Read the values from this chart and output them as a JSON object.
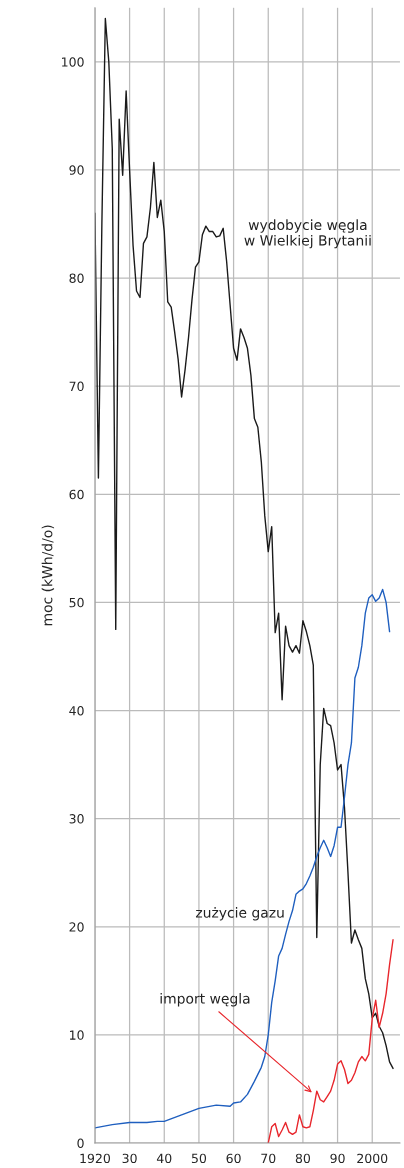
{
  "chart_data": {
    "type": "line",
    "ylabel": "moc (kWh/d/o)",
    "xlim": [
      1920,
      2008
    ],
    "ylim": [
      0,
      105
    ],
    "xticks": [
      {
        "value": 1920,
        "label": "1920"
      },
      {
        "value": 1930,
        "label": "30"
      },
      {
        "value": 1940,
        "label": "40"
      },
      {
        "value": 1950,
        "label": "50"
      },
      {
        "value": 1960,
        "label": "60"
      },
      {
        "value": 1970,
        "label": "70"
      },
      {
        "value": 1980,
        "label": "80"
      },
      {
        "value": 1990,
        "label": "90"
      },
      {
        "value": 2000,
        "label": "2000"
      }
    ],
    "yticks": [
      0,
      10,
      20,
      30,
      40,
      50,
      60,
      70,
      80,
      90,
      100
    ],
    "grid": true,
    "legend": false,
    "marker": "none",
    "line_style": "solid",
    "series": [
      {
        "name": "wydobycie węgla\nw Wielkiej Brytanii",
        "color": "#1a1a1a",
        "x": [
          1920,
          1921,
          1922,
          1923,
          1924,
          1925,
          1926,
          1927,
          1928,
          1929,
          1930,
          1931,
          1932,
          1933,
          1934,
          1935,
          1936,
          1937,
          1938,
          1939,
          1940,
          1941,
          1942,
          1943,
          1944,
          1945,
          1946,
          1947,
          1948,
          1949,
          1950,
          1951,
          1952,
          1953,
          1954,
          1955,
          1956,
          1957,
          1958,
          1959,
          1960,
          1961,
          1962,
          1963,
          1964,
          1965,
          1966,
          1967,
          1968,
          1969,
          1970,
          1971,
          1972,
          1973,
          1974,
          1975,
          1976,
          1977,
          1978,
          1979,
          1980,
          1981,
          1982,
          1983,
          1984,
          1985,
          1986,
          1987,
          1988,
          1989,
          1990,
          1991,
          1992,
          1993,
          1994,
          1995,
          1996,
          1997,
          1998,
          1999,
          2000,
          2001,
          2002,
          2003,
          2004,
          2005,
          2006
        ],
        "values": [
          86,
          61.5,
          85,
          104,
          100,
          92,
          47.5,
          94.7,
          89.5,
          97.3,
          90,
          83,
          78.8,
          78.2,
          83.2,
          83.8,
          86.5,
          90.7,
          85.6,
          87.2,
          84.3,
          77.8,
          77.3,
          75,
          72.5,
          69,
          71.5,
          74.5,
          78,
          81,
          81.5,
          84,
          84.8,
          84.3,
          84.3,
          83.8,
          83.9,
          84.6,
          81.5,
          77.5,
          73.5,
          72.4,
          75.3,
          74.5,
          73.5,
          71,
          67,
          66.2,
          63,
          58,
          54.7,
          57,
          47.2,
          49,
          41,
          47.8,
          46,
          45.4,
          46,
          45.3,
          48.3,
          47.3,
          46,
          44.2,
          19,
          35,
          40.2,
          38.8,
          38.6,
          37,
          34.5,
          35,
          31,
          25,
          18.5,
          19.7,
          18.8,
          18,
          15.2,
          13.8,
          11.6,
          12,
          10.8,
          10.2,
          9,
          7.5,
          6.9
        ]
      },
      {
        "name": "zużycie gazu",
        "color": "#1f5fbf",
        "x": [
          1920,
          1925,
          1930,
          1935,
          1938,
          1940,
          1945,
          1950,
          1955,
          1959,
          1960,
          1962,
          1964,
          1966,
          1968,
          1969,
          1970,
          1971,
          1972,
          1973,
          1974,
          1975,
          1976,
          1977,
          1978,
          1979,
          1980,
          1981,
          1982,
          1983,
          1984,
          1985,
          1986,
          1987,
          1988,
          1989,
          1990,
          1991,
          1992,
          1993,
          1994,
          1995,
          1996,
          1997,
          1998,
          1999,
          2000,
          2001,
          2002,
          2003,
          2004,
          2005
        ],
        "values": [
          1.4,
          1.7,
          1.9,
          1.9,
          2.0,
          2.0,
          2.6,
          3.2,
          3.5,
          3.4,
          3.7,
          3.8,
          4.5,
          5.7,
          7,
          8,
          10,
          13,
          15,
          17.3,
          18,
          19.3,
          20.5,
          21.5,
          23,
          23.3,
          23.5,
          24,
          24.7,
          25.5,
          26.5,
          27.3,
          28,
          27.3,
          26.5,
          27.5,
          29.2,
          29.2,
          32,
          35,
          37,
          43,
          44,
          46,
          49,
          50.4,
          50.7,
          50.1,
          50.4,
          51.2,
          50,
          47.3
        ]
      },
      {
        "name": "import węgla",
        "color": "#e8262c",
        "x": [
          1970,
          1971,
          1972,
          1973,
          1974,
          1975,
          1976,
          1977,
          1978,
          1979,
          1980,
          1981,
          1982,
          1983,
          1984,
          1985,
          1986,
          1987,
          1988,
          1989,
          1990,
          1991,
          1992,
          1993,
          1994,
          1995,
          1996,
          1997,
          1998,
          1999,
          2000,
          2001,
          2002,
          2003,
          2004,
          2005,
          2006
        ],
        "values": [
          0,
          1.5,
          1.8,
          0.6,
          1.2,
          1.9,
          1,
          0.8,
          1,
          2.6,
          1.5,
          1.4,
          1.5,
          3,
          4.8,
          4,
          3.8,
          4.3,
          4.8,
          5.8,
          7.3,
          7.6,
          6.8,
          5.5,
          5.8,
          6.5,
          7.5,
          8,
          7.6,
          8.2,
          11.5,
          13.2,
          10.7,
          12,
          13.8,
          16.5,
          18.8
        ]
      }
    ]
  }
}
